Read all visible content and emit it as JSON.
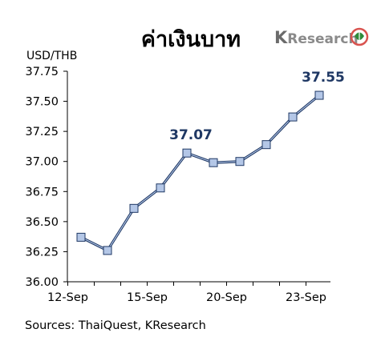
{
  "chart_data": {
    "type": "line",
    "title": "ค่าเงินบาท",
    "ylabel": "USD/THB",
    "x": [
      "12-Sep",
      "13-Sep",
      "14-Sep",
      "15-Sep",
      "16-Sep",
      "19-Sep",
      "20-Sep",
      "21-Sep",
      "22-Sep",
      "23-Sep"
    ],
    "xticks": [
      "12-Sep",
      "15-Sep",
      "20-Sep",
      "23-Sep"
    ],
    "values": [
      36.37,
      36.26,
      36.61,
      36.78,
      37.07,
      36.99,
      37.0,
      37.14,
      37.37,
      37.55
    ],
    "ylim": [
      36.0,
      37.75
    ],
    "yticks": [
      "36.00",
      "36.25",
      "36.50",
      "36.75",
      "37.00",
      "37.25",
      "37.50",
      "37.75"
    ],
    "annotations": [
      {
        "index": 4,
        "label": "37.07"
      },
      {
        "index": 9,
        "label": "37.55"
      }
    ],
    "source": "Sources: ThaiQuest, KResearch",
    "colors": {
      "line": "#1f3864",
      "marker_fill": "#b4c7e7",
      "marker_edge": "#1f3864"
    }
  },
  "logo": {
    "text": "KResearch",
    "k": "K",
    "rest": "Research",
    "icon": "kbank-leaf-icon"
  }
}
